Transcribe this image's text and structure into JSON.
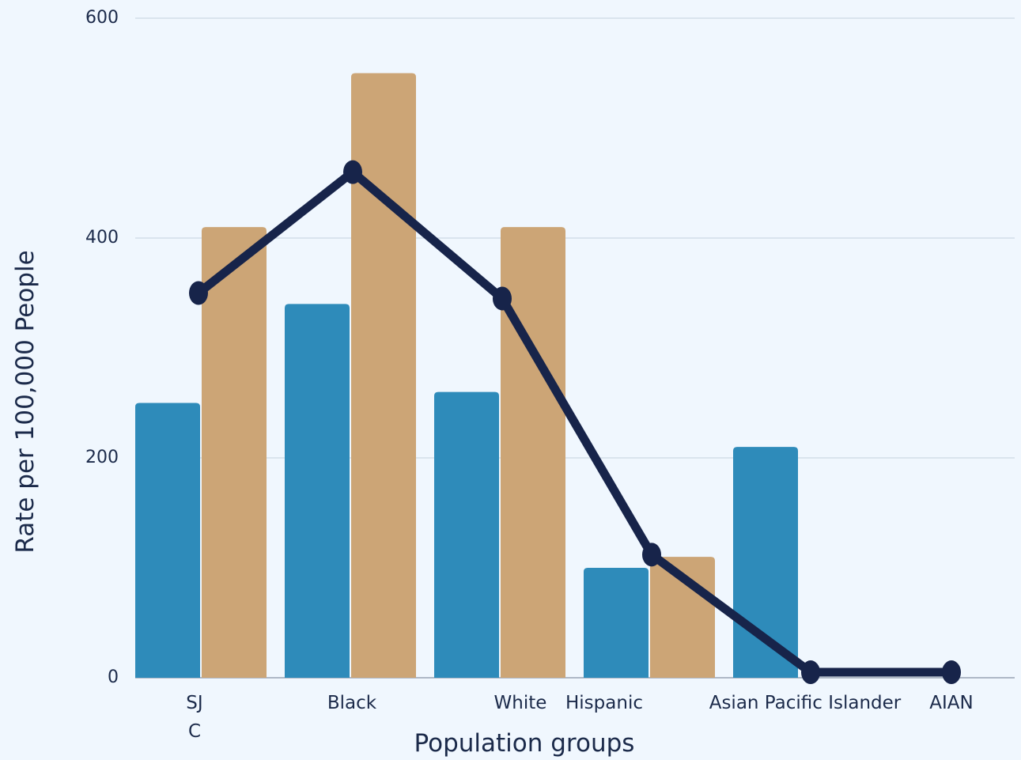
{
  "chart_data": {
    "type": "bar",
    "categories": [
      "SJ\nC",
      "Black",
      "White",
      "Hispanic",
      "Asian Pacific Islander",
      "AIAN"
    ],
    "series": [
      {
        "type": "bar",
        "color": "#2e8bba",
        "values": [
          250,
          340,
          260,
          100,
          210,
          0
        ]
      },
      {
        "type": "bar",
        "color": "#cca576",
        "values": [
          410,
          550,
          410,
          110,
          0,
          0
        ]
      },
      {
        "type": "line",
        "color": "#17244a",
        "values": [
          350,
          460,
          345,
          112,
          5,
          5
        ]
      }
    ],
    "xlabel": "Population groups",
    "ylabel": "Rate per 100,000 People",
    "ylim": [
      0,
      600
    ],
    "yticks": [
      0,
      200,
      400,
      600
    ],
    "grid": true,
    "legend": "none"
  }
}
